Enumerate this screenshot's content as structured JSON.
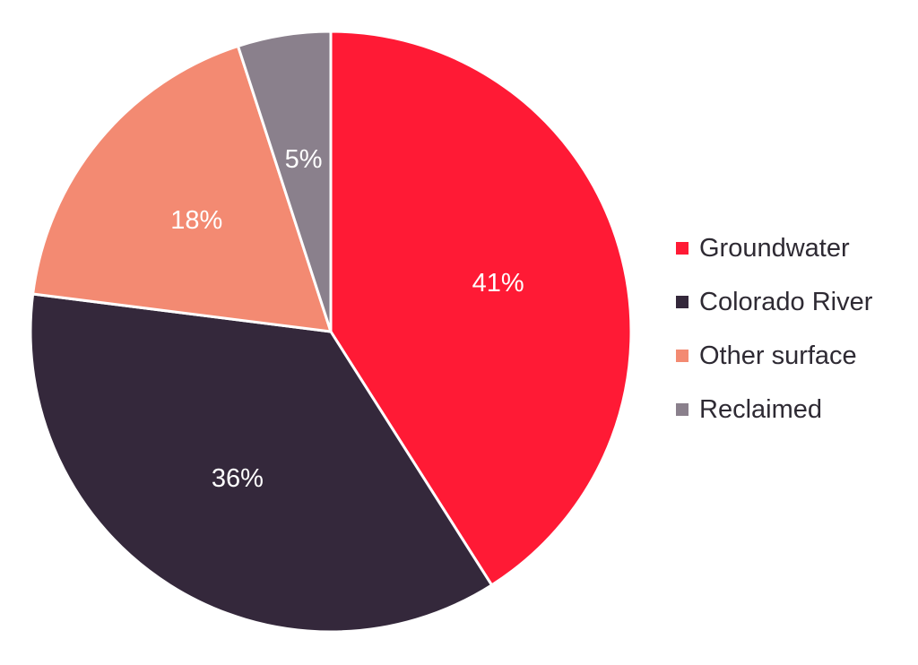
{
  "chart_data": {
    "type": "pie",
    "categories": [
      "Groundwater",
      "Colorado River",
      "Other surface",
      "Reclaimed"
    ],
    "values": [
      41,
      36,
      18,
      5
    ],
    "labels": [
      "41%",
      "36%",
      "18%",
      "5%"
    ],
    "colors": [
      "#ff1a35",
      "#34283b",
      "#f38a72",
      "#8a808c"
    ],
    "start_angle_deg": 0,
    "direction": "clockwise",
    "legend_position": "right"
  }
}
